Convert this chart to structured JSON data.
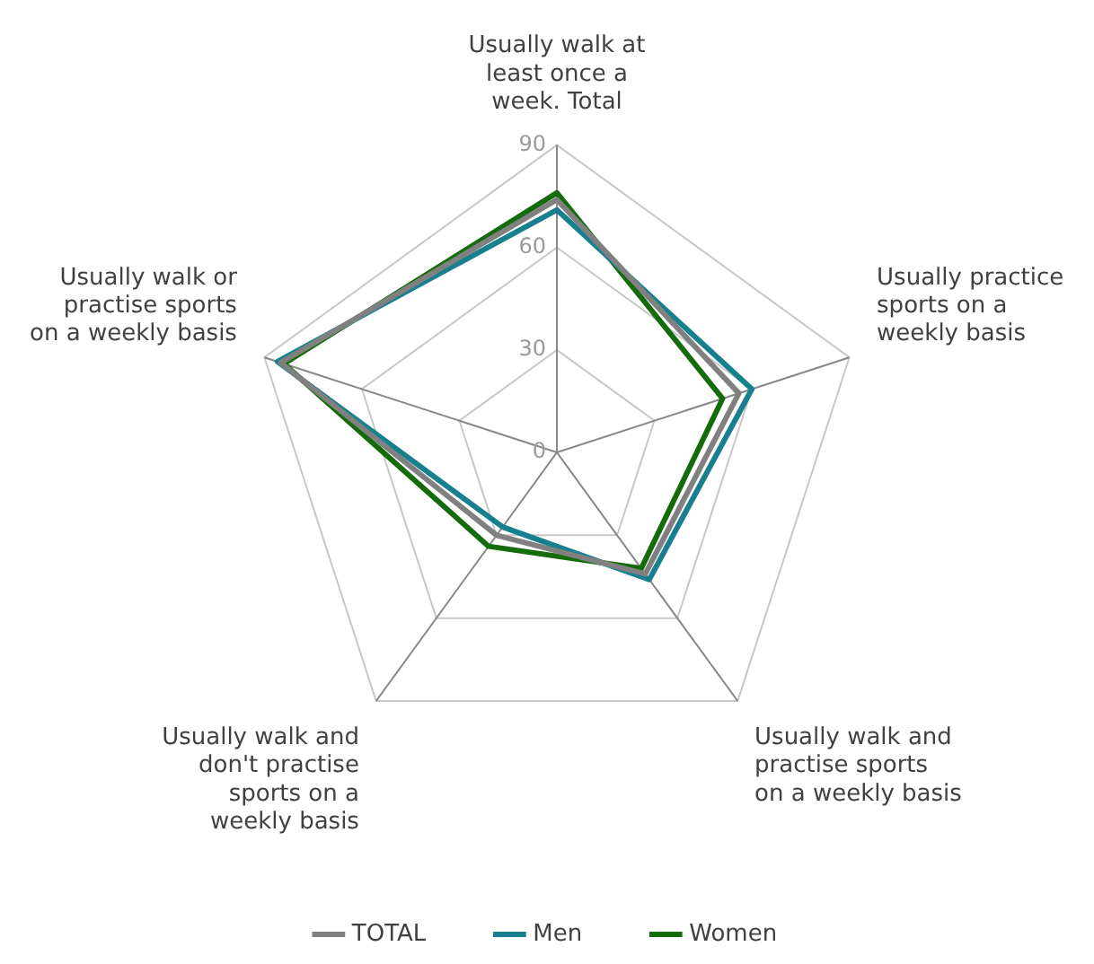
{
  "chart_data": {
    "type": "radar",
    "categories": [
      "Usually walk at least once a week. Total",
      "Usually practice sports on a weekly basis",
      "Usually walk and practise sports on a weekly basis",
      "Usually walk and don't practise sports on a weekly basis",
      "Usually walk or practise sports on a weekly basis"
    ],
    "series": [
      {
        "name": "TOTAL",
        "color": "#808080",
        "values": [
          74,
          56,
          44,
          30,
          85
        ]
      },
      {
        "name": "Men",
        "color": "#17808e",
        "values": [
          71,
          60,
          46,
          27,
          86
        ]
      },
      {
        "name": "Women",
        "color": "#146b0a",
        "values": [
          76,
          51,
          42,
          34,
          84
        ]
      }
    ],
    "ylim": [
      0,
      90
    ],
    "yticks": [
      0,
      30,
      60,
      90
    ],
    "grid": true,
    "legend": "bottom",
    "marker": "none",
    "line_style": "solid"
  }
}
